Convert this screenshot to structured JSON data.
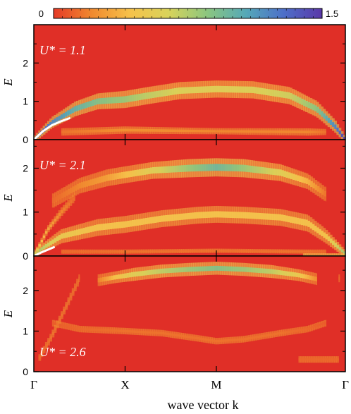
{
  "chart_data": {
    "type": "heatmap",
    "title": "",
    "xlabel": "wave vector  k",
    "ylabel": "E",
    "colorbar": {
      "min_label": "0",
      "max_label": "1.5",
      "range": [
        0,
        1.5
      ],
      "colors": [
        "#e53a27",
        "#f08a2f",
        "#f6c24b",
        "#d8d35a",
        "#8cc67f",
        "#55a9b7",
        "#4d6fc9",
        "#5a37a8"
      ]
    },
    "background_color": "#e02f27",
    "x_ticks": [
      {
        "label": "Γ",
        "k": 0
      },
      {
        "label": "X",
        "k": 1
      },
      {
        "label": "M",
        "k": 2
      },
      {
        "label": "Γ",
        "k": 3.414
      }
    ],
    "xlim": [
      0,
      3.414
    ],
    "panels": [
      {
        "label": "U* = 1.1",
        "label_position": "top-left",
        "ylim": [
          0,
          3.0
        ],
        "y_ticks": [
          "0",
          "1",
          "2"
        ],
        "y_tick_values": [
          0,
          1,
          2
        ],
        "overlay_curve": {
          "color": "#ffffff",
          "k": [
            0,
            0.1,
            0.2,
            0.3,
            0.39
          ],
          "E": [
            0,
            0.22,
            0.38,
            0.48,
            0.56
          ]
        },
        "bands": [
          {
            "name": "quasiparticle",
            "k": [
              0,
              0.2,
              0.45,
              0.7,
              1.0,
              1.25,
              1.6,
              2.0,
              2.4,
              2.8,
              3.1,
              3.3,
              3.414
            ],
            "E": [
              0,
              0.45,
              0.8,
              1.0,
              1.05,
              1.15,
              1.28,
              1.32,
              1.3,
              1.15,
              0.8,
              0.35,
              0
            ],
            "width": [
              0.05,
              0.09,
              0.12,
              0.13,
              0.14,
              0.14,
              0.14,
              0.14,
              0.14,
              0.14,
              0.13,
              0.1,
              0.05
            ],
            "intensity": [
              1.0,
              0.8,
              0.68,
              0.6,
              0.55,
              0.48,
              0.42,
              0.4,
              0.42,
              0.45,
              0.58,
              0.8,
              1.0
            ]
          },
          {
            "name": "low-energy continuum",
            "k": [
              0.3,
              1.0,
              2.0,
              3.0,
              3.2
            ],
            "E": [
              0.2,
              0.25,
              0.22,
              0.2,
              0.2
            ],
            "width": [
              0.06,
              0.06,
              0.05,
              0.06,
              0.05
            ],
            "intensity": [
              0.1,
              0.16,
              0.14,
              0.14,
              0.1
            ]
          }
        ]
      },
      {
        "label": "U* = 2.1",
        "label_position": "top-left",
        "ylim": [
          0,
          2.65
        ],
        "y_ticks": [
          "0",
          "1",
          "2"
        ],
        "y_tick_values": [
          0,
          1,
          2
        ],
        "overlay_curve": {
          "color": "#ffffff",
          "k": [
            0,
            0.08,
            0.16,
            0.22
          ],
          "E": [
            0,
            0.08,
            0.15,
            0.2
          ]
        },
        "bands": [
          {
            "name": "upper band",
            "k": [
              0.2,
              0.5,
              0.8,
              1.0,
              1.3,
              1.7,
              2.0,
              2.3,
              2.7,
              3.0,
              3.2
            ],
            "E": [
              1.25,
              1.6,
              1.78,
              1.85,
              1.95,
              2.0,
              2.02,
              2.0,
              1.9,
              1.7,
              1.4
            ],
            "width": [
              0.1,
              0.11,
              0.12,
              0.12,
              0.12,
              0.13,
              0.13,
              0.13,
              0.12,
              0.11,
              0.1
            ],
            "intensity": [
              0.08,
              0.14,
              0.2,
              0.28,
              0.4,
              0.55,
              0.65,
              0.55,
              0.4,
              0.25,
              0.1
            ]
          },
          {
            "name": "middle band",
            "k": [
              0,
              0.3,
              0.7,
              1.0,
              1.4,
              1.8,
              2.0,
              2.3,
              2.7,
              3.0,
              3.2,
              3.414
            ],
            "E": [
              0.05,
              0.45,
              0.65,
              0.72,
              0.85,
              0.93,
              0.95,
              0.93,
              0.88,
              0.75,
              0.45,
              0.05
            ],
            "width": [
              0.05,
              0.1,
              0.12,
              0.12,
              0.12,
              0.12,
              0.12,
              0.12,
              0.12,
              0.12,
              0.1,
              0.05
            ],
            "intensity": [
              0.55,
              0.35,
              0.3,
              0.3,
              0.3,
              0.3,
              0.3,
              0.3,
              0.3,
              0.3,
              0.3,
              0.55
            ]
          },
          {
            "name": "flat band",
            "k": [
              0.3,
              1.0,
              2.0,
              3.0,
              3.2
            ],
            "E": [
              0.1,
              0.1,
              0.12,
              0.1,
              0.1
            ],
            "width": [
              0.03,
              0.03,
              0.03,
              0.03,
              0.03
            ],
            "intensity": [
              0.08,
              0.1,
              0.1,
              0.1,
              0.08
            ]
          },
          {
            "name": "edge streak",
            "k": [
              0,
              0.15,
              0.3,
              0.45
            ],
            "E": [
              0,
              0.6,
              1.0,
              1.35
            ],
            "width": [
              0.04,
              0.05,
              0.06,
              0.06
            ],
            "intensity": [
              0.4,
              0.22,
              0.14,
              0.08
            ]
          },
          {
            "name": "edge streak right",
            "k": [
              3.414,
              3.25,
              3.1,
              2.95
            ],
            "E": [
              0,
              0.6,
              1.0,
              1.35
            ],
            "width": [
              0.04,
              0.05,
              0.06,
              0.06
            ],
            "intensity": [
              0.4,
              0.22,
              0.14,
              0.08
            ]
          }
        ]
      },
      {
        "label": "U* = 2.6",
        "label_position": "bottom-left",
        "ylim": [
          0,
          2.85
        ],
        "y_ticks": [
          "0",
          "1",
          "2"
        ],
        "y_tick_values": [
          0,
          1,
          2
        ],
        "bands": [
          {
            "name": "upper band",
            "k": [
              0.7,
              0.9,
              1.1,
              1.4,
              1.7,
              2.0,
              2.3,
              2.6,
              2.9,
              3.1
            ],
            "E": [
              2.25,
              2.33,
              2.4,
              2.48,
              2.52,
              2.55,
              2.52,
              2.47,
              2.38,
              2.28
            ],
            "width": [
              0.09,
              0.09,
              0.1,
              0.1,
              0.1,
              0.1,
              0.1,
              0.1,
              0.09,
              0.09
            ],
            "intensity": [
              0.12,
              0.3,
              0.4,
              0.48,
              0.55,
              0.6,
              0.55,
              0.48,
              0.35,
              0.15
            ]
          },
          {
            "name": "lower band",
            "k": [
              0.2,
              0.5,
              1.0,
              1.4,
              1.8,
              2.0,
              2.3,
              2.7,
              3.0,
              3.2
            ],
            "E": [
              1.2,
              1.05,
              1.0,
              0.95,
              0.82,
              0.75,
              0.8,
              0.95,
              1.05,
              1.2
            ],
            "width": [
              0.05,
              0.05,
              0.05,
              0.05,
              0.05,
              0.05,
              0.05,
              0.05,
              0.05,
              0.05
            ],
            "intensity": [
              0.06,
              0.08,
              0.1,
              0.1,
              0.1,
              0.1,
              0.1,
              0.1,
              0.08,
              0.06
            ]
          },
          {
            "name": "edge streak",
            "k": [
              0.05,
              0.2,
              0.35,
              0.5
            ],
            "E": [
              0.3,
              0.9,
              1.6,
              2.3
            ],
            "width": [
              0.05,
              0.06,
              0.06,
              0.06
            ],
            "intensity": [
              0.08,
              0.1,
              0.1,
              0.08
            ]
          },
          {
            "name": "edge streak right",
            "k": [
              3.35,
              3.2,
              3.05,
              2.9
            ],
            "E": [
              0.3,
              0.9,
              1.6,
              2.3
            ],
            "width": [
              0.05,
              0.06,
              0.06,
              0.06
            ],
            "intensity": [
              0.08,
              0.1,
              0.1,
              0.08
            ]
          }
        ]
      }
    ]
  }
}
